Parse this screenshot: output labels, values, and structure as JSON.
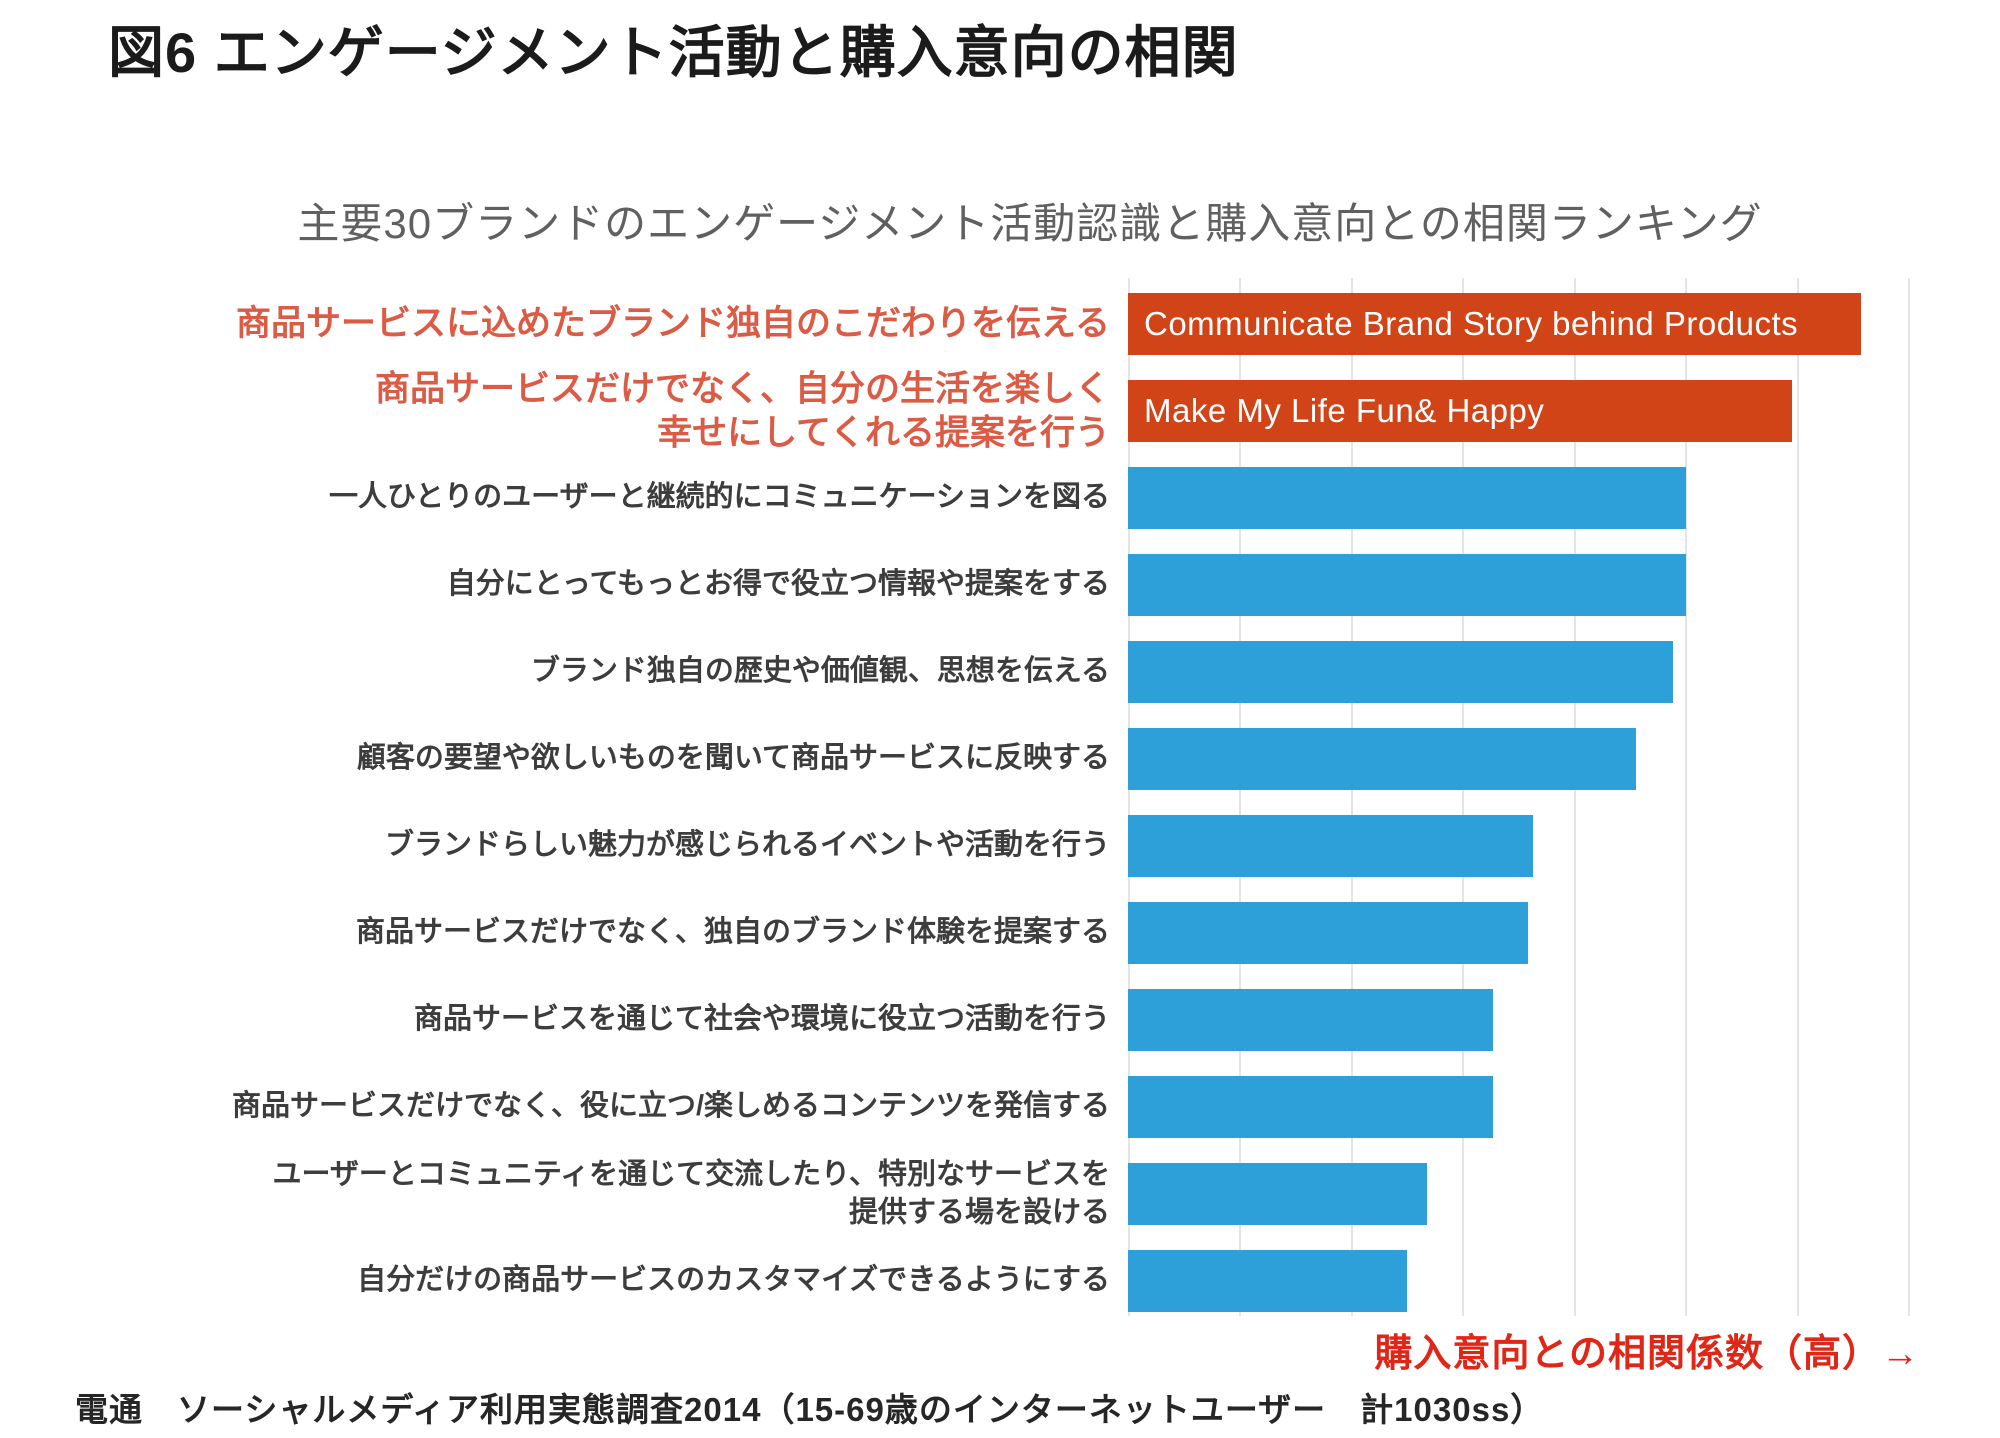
{
  "page": {
    "title": "図6 エンゲージメント活動と購入意向の相関",
    "subtitle": "主要30ブランドのエンゲージメント活動認識と購入意向との相関ランキング",
    "axis_caption": "購入意向との相関係数（高）→",
    "source": "電通　ソーシャルメディア利用実態調査2014（15-69歳のインターネットユーザー　計1030ss）"
  },
  "colors": {
    "highlight_bar": "#d04418",
    "normal_bar": "#2d9fd9",
    "highlight_label": "#db5b45",
    "axis_caption": "#e02617",
    "label": "#3d3d3d",
    "gridline": "#e4e4e4"
  },
  "chart_data": {
    "type": "bar",
    "orientation": "horizontal",
    "title": "主要30ブランドのエンゲージメント活動認識と購入意向との相関ランキング",
    "xlabel": "購入意向との相関係数（高）→",
    "axis_numbers_shown": false,
    "gridline_count": 8,
    "legend": "none",
    "categories": [
      "商品サービスに込めたブランド独自のこだわりを伝える",
      "商品サービスだけでなく、自分の生活を楽しく\n幸せにしてくれる提案を行う",
      "一人ひとりのユーザーと継続的にコミュニケーションを図る",
      "自分にとってもっとお得で役立つ情報や提案をする",
      "ブランド独自の歴史や価値観、思想を伝える",
      "顧客の要望や欲しいものを聞いて商品サービスに反映する",
      "ブランドらしい魅力が感じられるイベントや活動を行う",
      "商品サービスだけでなく、独自のブランド体験を提案する",
      "商品サービスを通じて社会や環境に役立つ活動を行う",
      "商品サービスだけでなく、役に立つ/楽しめるコンテンツを発信する",
      "ユーザーとコミュニティを通じて交流したり、特別なサービスを\n提供する場を設ける",
      "自分だけの商品サービスのカスタマイズできるようにする"
    ],
    "values_relative": [
      0.94,
      0.851,
      0.715,
      0.715,
      0.699,
      0.651,
      0.519,
      0.513,
      0.468,
      0.468,
      0.383,
      0.358
    ],
    "highlighted": [
      true,
      true,
      false,
      false,
      false,
      false,
      false,
      false,
      false,
      false,
      false,
      false
    ],
    "bar_inner_texts": [
      "Communicate Brand Story behind Products",
      "Make My Life Fun& Happy",
      "",
      "",
      "",
      "",
      "",
      "",
      "",
      "",
      "",
      ""
    ]
  }
}
